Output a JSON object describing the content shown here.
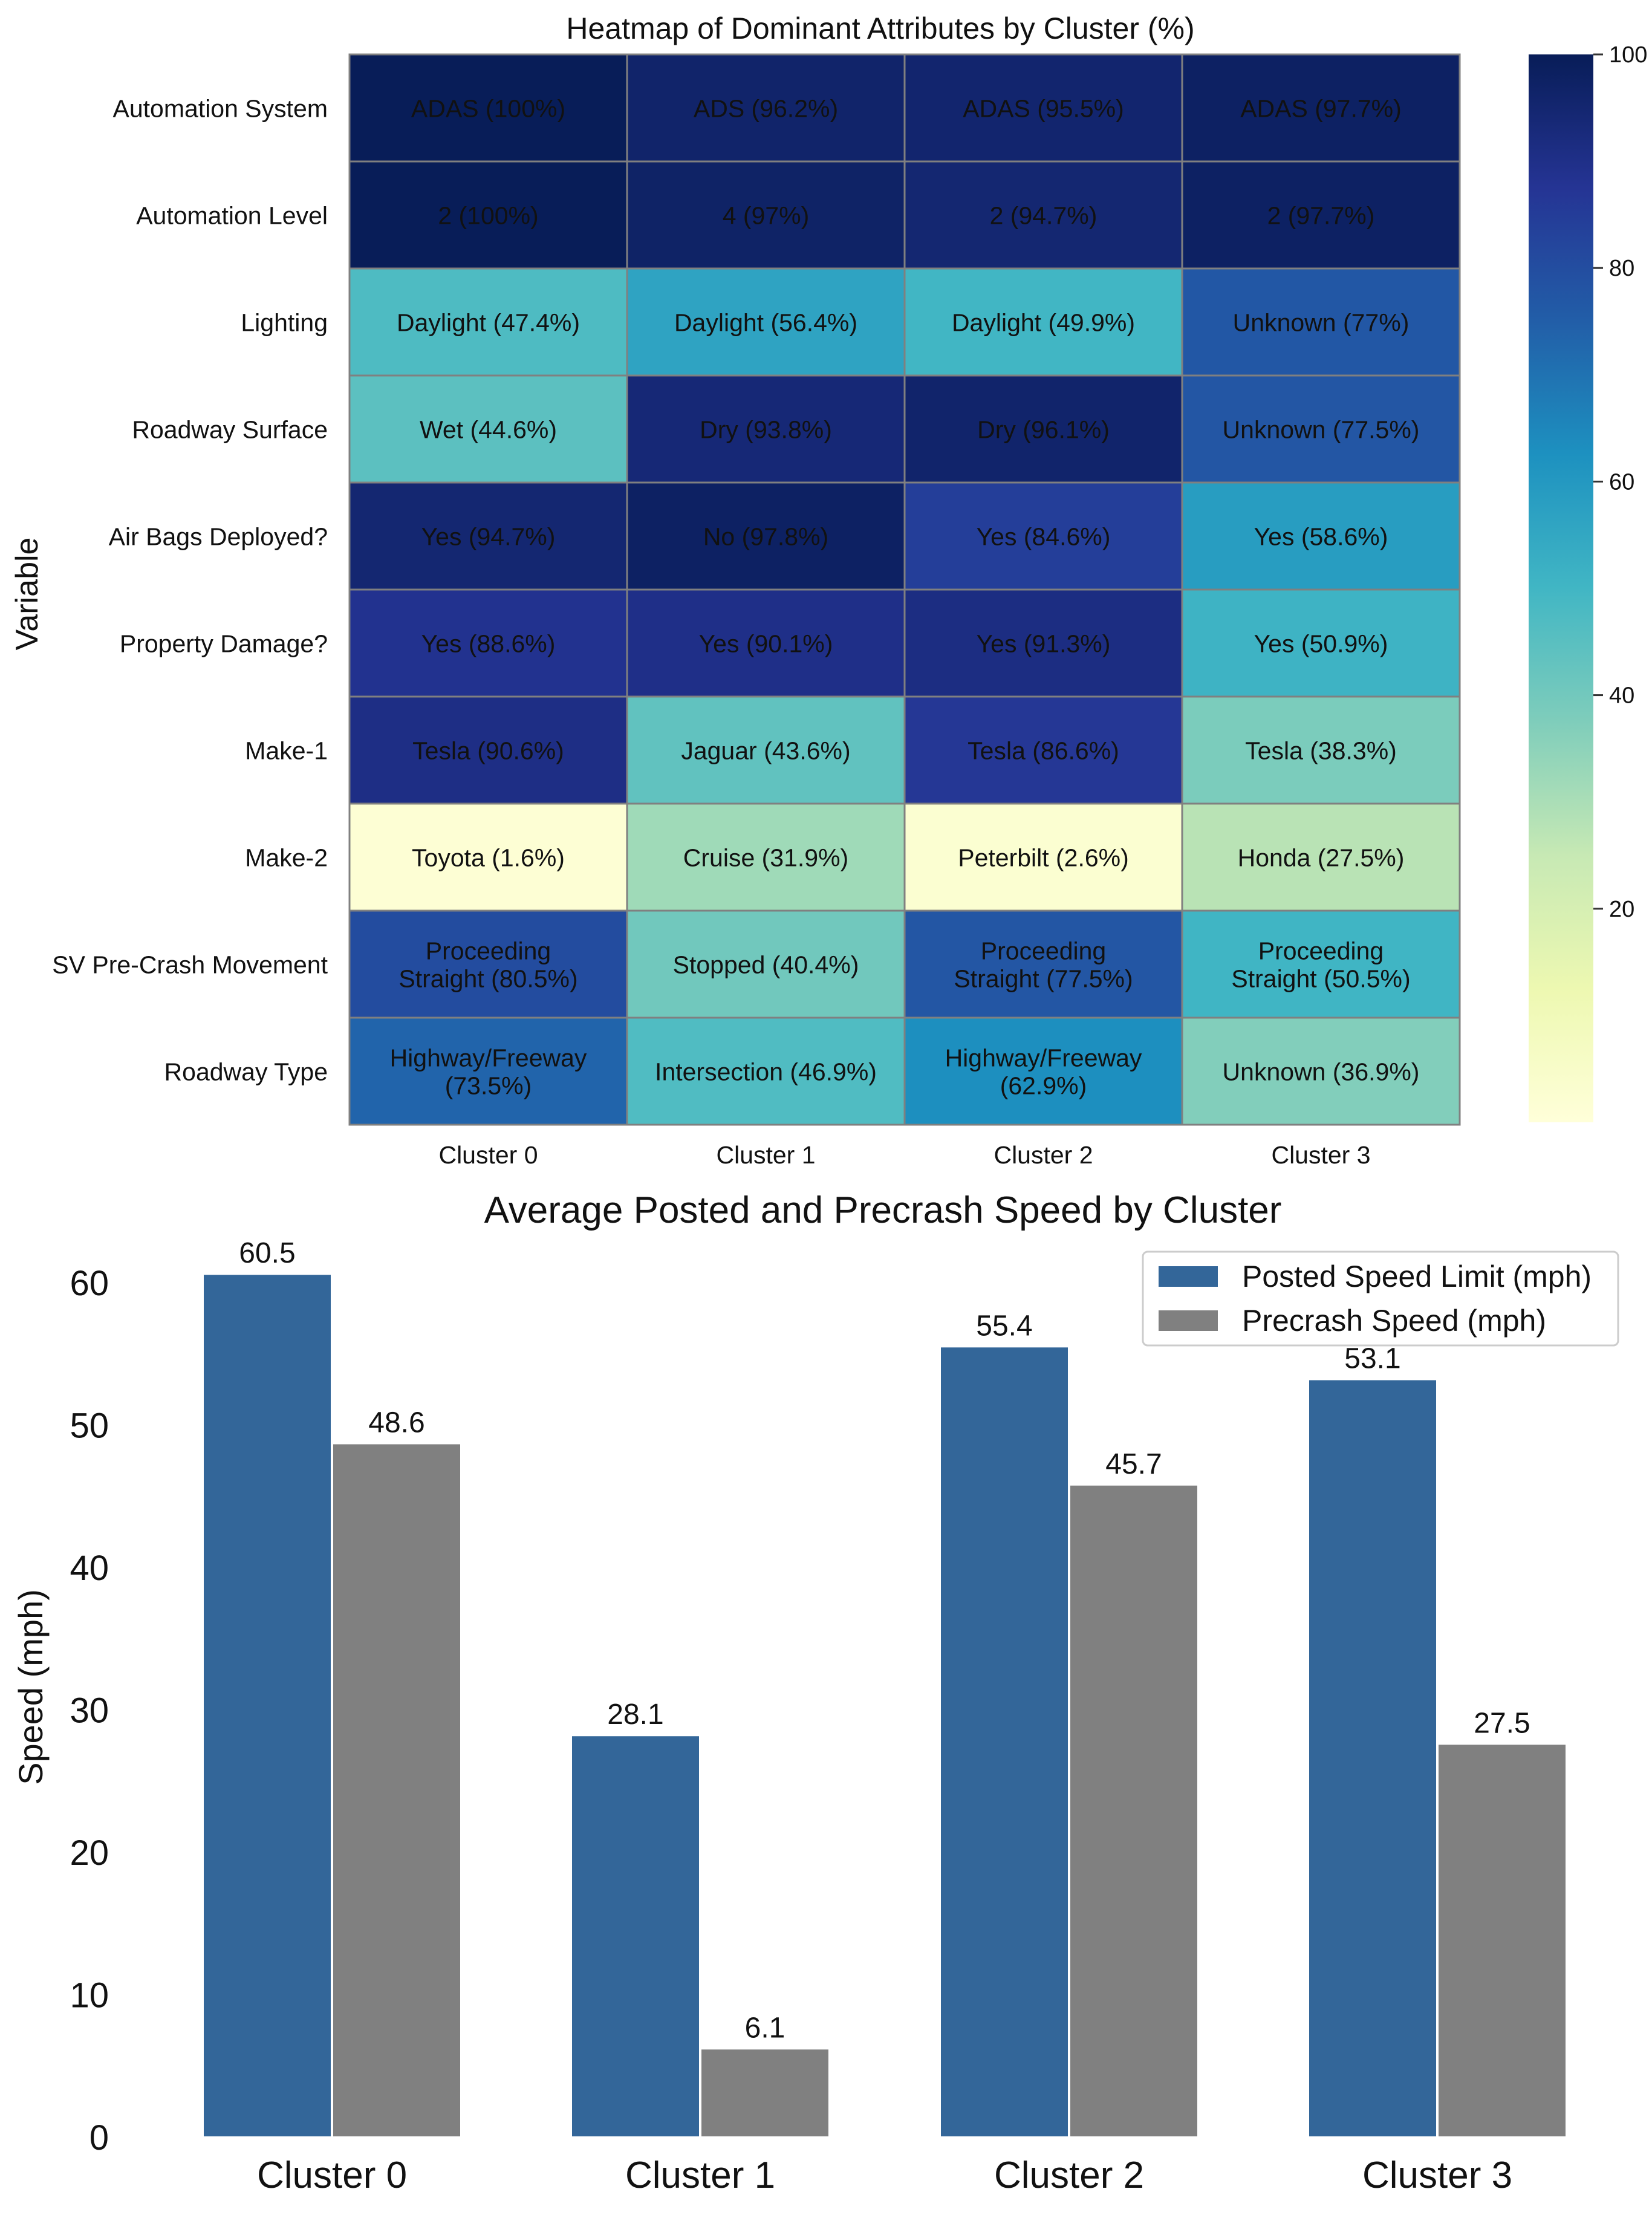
{
  "chart_data": [
    {
      "type": "heatmap",
      "title": "Heatmap of Dominant Attributes by Cluster (%)",
      "ylabel": "Variable",
      "xlabel": "",
      "columns": [
        "Cluster 0",
        "Cluster 1",
        "Cluster 2",
        "Cluster 3"
      ],
      "rows": [
        "Automation System",
        "Automation Level",
        "Lighting",
        "Roadway Surface",
        "Air Bags Deployed?",
        "Property Damage?",
        "Make-1",
        "Make-2",
        "SV Pre-Crash Movement",
        "Roadway Type"
      ],
      "values": [
        [
          100,
          96.2,
          95.5,
          97.7
        ],
        [
          100,
          97,
          94.7,
          97.7
        ],
        [
          47.4,
          56.4,
          49.9,
          77
        ],
        [
          44.6,
          93.8,
          96.1,
          77.5
        ],
        [
          94.7,
          97.8,
          84.6,
          58.6
        ],
        [
          88.6,
          90.1,
          91.3,
          50.9
        ],
        [
          90.6,
          43.6,
          86.6,
          38.3
        ],
        [
          1.6,
          31.9,
          2.6,
          27.5
        ],
        [
          80.5,
          40.4,
          77.5,
          50.5
        ],
        [
          73.5,
          46.9,
          62.9,
          36.9
        ]
      ],
      "annotations": [
        [
          [
            "ADAS (100%)"
          ],
          [
            "ADS (96.2%)"
          ],
          [
            "ADAS (95.5%)"
          ],
          [
            "ADAS (97.7%)"
          ]
        ],
        [
          [
            "2 (100%)"
          ],
          [
            "4 (97%)"
          ],
          [
            "2 (94.7%)"
          ],
          [
            "2 (97.7%)"
          ]
        ],
        [
          [
            "Daylight (47.4%)"
          ],
          [
            "Daylight (56.4%)"
          ],
          [
            "Daylight (49.9%)"
          ],
          [
            "Unknown (77%)"
          ]
        ],
        [
          [
            "Wet (44.6%)"
          ],
          [
            "Dry (93.8%)"
          ],
          [
            "Dry (96.1%)"
          ],
          [
            "Unknown (77.5%)"
          ]
        ],
        [
          [
            "Yes (94.7%)"
          ],
          [
            "No (97.8%)"
          ],
          [
            "Yes (84.6%)"
          ],
          [
            "Yes (58.6%)"
          ]
        ],
        [
          [
            "Yes (88.6%)"
          ],
          [
            "Yes (90.1%)"
          ],
          [
            "Yes (91.3%)"
          ],
          [
            "Yes (50.9%)"
          ]
        ],
        [
          [
            "Tesla (90.6%)"
          ],
          [
            "Jaguar (43.6%)"
          ],
          [
            "Tesla (86.6%)"
          ],
          [
            "Tesla (38.3%)"
          ]
        ],
        [
          [
            "Toyota (1.6%)"
          ],
          [
            "Cruise (31.9%)"
          ],
          [
            "Peterbilt (2.6%)"
          ],
          [
            "Honda (27.5%)"
          ]
        ],
        [
          [
            "Proceeding",
            "Straight (80.5%)"
          ],
          [
            "Stopped (40.4%)"
          ],
          [
            "Proceeding",
            "Straight (77.5%)"
          ],
          [
            "Proceeding",
            "Straight (50.5%)"
          ]
        ],
        [
          [
            "Highway/Freeway",
            "(73.5%)"
          ],
          [
            "Intersection (46.9%)"
          ],
          [
            "Highway/Freeway",
            "(62.9%)"
          ],
          [
            "Unknown (36.9%)"
          ]
        ]
      ],
      "colorbar": {
        "min": 0,
        "max": 100,
        "ticks": [
          20,
          40,
          60,
          80,
          100
        ],
        "colormap": "YlGnBu"
      }
    },
    {
      "type": "bar",
      "title": "Average Posted and Precrash Speed by Cluster",
      "xlabel": "",
      "ylabel": "Speed (mph)",
      "categories": [
        "Cluster 0",
        "Cluster 1",
        "Cluster 2",
        "Cluster 3"
      ],
      "series": [
        {
          "name": "Posted Speed Limit (mph)",
          "values": [
            60.5,
            28.1,
            55.4,
            53.1
          ],
          "color": "#336699"
        },
        {
          "name": "Precrash Speed (mph)",
          "values": [
            48.6,
            6.1,
            45.7,
            27.5
          ],
          "color": "#808080"
        }
      ],
      "ylim": [
        0,
        65
      ],
      "yticks": [
        0,
        10,
        20,
        30,
        40,
        50,
        60
      ],
      "grid": false,
      "legend": "top-right"
    }
  ]
}
